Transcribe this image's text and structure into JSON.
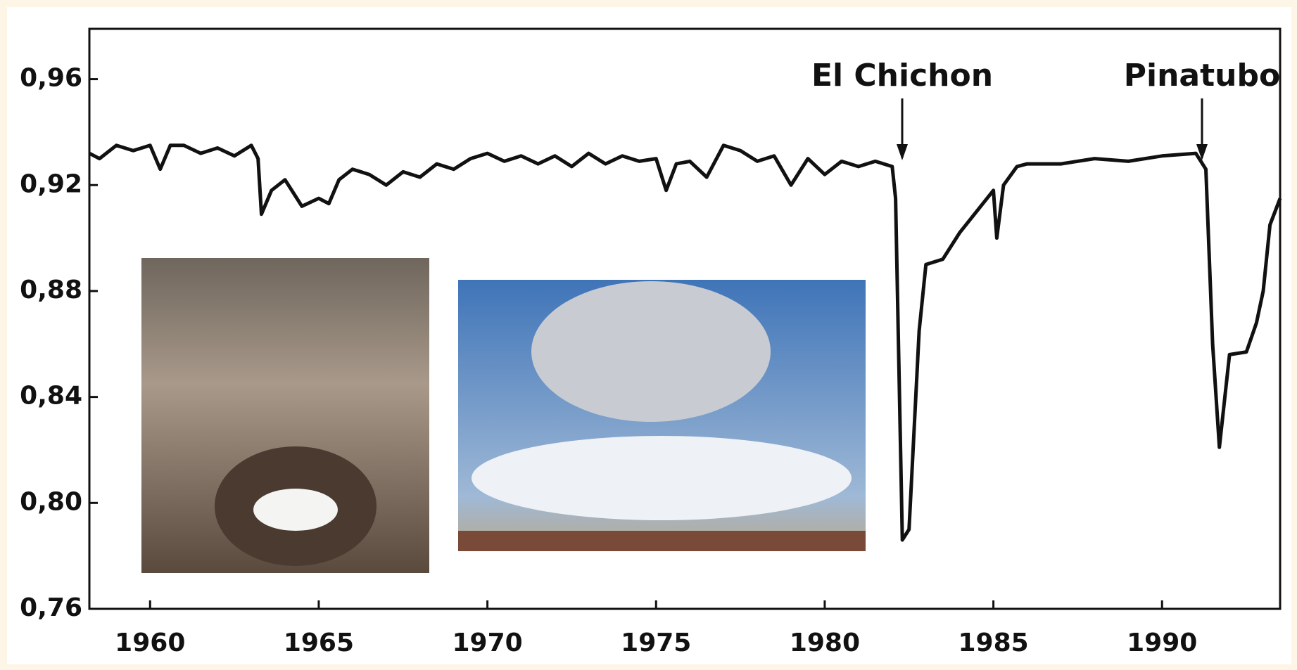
{
  "chart_data": {
    "type": "line",
    "x": [
      1958.2,
      1958.5,
      1959,
      1959.5,
      1960,
      1960.3,
      1960.6,
      1961,
      1961.5,
      1962,
      1962.5,
      1963,
      1963.2,
      1963.3,
      1963.6,
      1964,
      1964.5,
      1965,
      1965.3,
      1965.6,
      1966,
      1966.5,
      1967,
      1967.5,
      1968,
      1968.5,
      1969,
      1969.5,
      1970,
      1970.5,
      1971,
      1971.5,
      1972,
      1972.5,
      1973,
      1973.5,
      1974,
      1974.5,
      1975,
      1975.3,
      1975.6,
      1976,
      1976.5,
      1977,
      1977.5,
      1978,
      1978.5,
      1979,
      1979.5,
      1980,
      1980.5,
      1981,
      1981.5,
      1982,
      1982.1,
      1982.3,
      1982.5,
      1982.8,
      1983,
      1983.5,
      1984,
      1984.5,
      1985,
      1985.1,
      1985.3,
      1985.7,
      1986,
      1987,
      1988,
      1989,
      1990,
      1991,
      1991.3,
      1991.5,
      1991.7,
      1992,
      1992.5,
      1992.8,
      1993,
      1993.2,
      1993.5
    ],
    "values": [
      0.932,
      0.93,
      0.935,
      0.933,
      0.935,
      0.926,
      0.935,
      0.935,
      0.932,
      0.934,
      0.931,
      0.935,
      0.93,
      0.909,
      0.918,
      0.922,
      0.912,
      0.915,
      0.913,
      0.922,
      0.926,
      0.924,
      0.92,
      0.925,
      0.923,
      0.928,
      0.926,
      0.93,
      0.932,
      0.929,
      0.931,
      0.928,
      0.931,
      0.927,
      0.932,
      0.928,
      0.931,
      0.929,
      0.93,
      0.918,
      0.928,
      0.929,
      0.923,
      0.935,
      0.933,
      0.929,
      0.931,
      0.92,
      0.93,
      0.924,
      0.929,
      0.927,
      0.929,
      0.927,
      0.915,
      0.786,
      0.79,
      0.865,
      0.89,
      0.892,
      0.902,
      0.91,
      0.918,
      0.9,
      0.92,
      0.927,
      0.928,
      0.928,
      0.93,
      0.929,
      0.931,
      0.932,
      0.926,
      0.86,
      0.821,
      0.856,
      0.857,
      0.868,
      0.88,
      0.905,
      0.915
    ],
    "color": "#111111",
    "xlim": [
      1958.2,
      1993.5
    ],
    "xticks": [
      1960,
      1965,
      1970,
      1975,
      1980,
      1985,
      1990
    ],
    "ylim": [
      0.76,
      0.979
    ],
    "yticks": [
      {
        "value": 0.76,
        "label": "0,76"
      },
      {
        "value": 0.8,
        "label": "0,80"
      },
      {
        "value": 0.84,
        "label": "0,84"
      },
      {
        "value": 0.88,
        "label": "0,88"
      },
      {
        "value": 0.92,
        "label": "0,92"
      },
      {
        "value": 0.96,
        "label": "0,96"
      }
    ],
    "annotations": [
      "El Chichon",
      "Pinatubo"
    ]
  }
}
